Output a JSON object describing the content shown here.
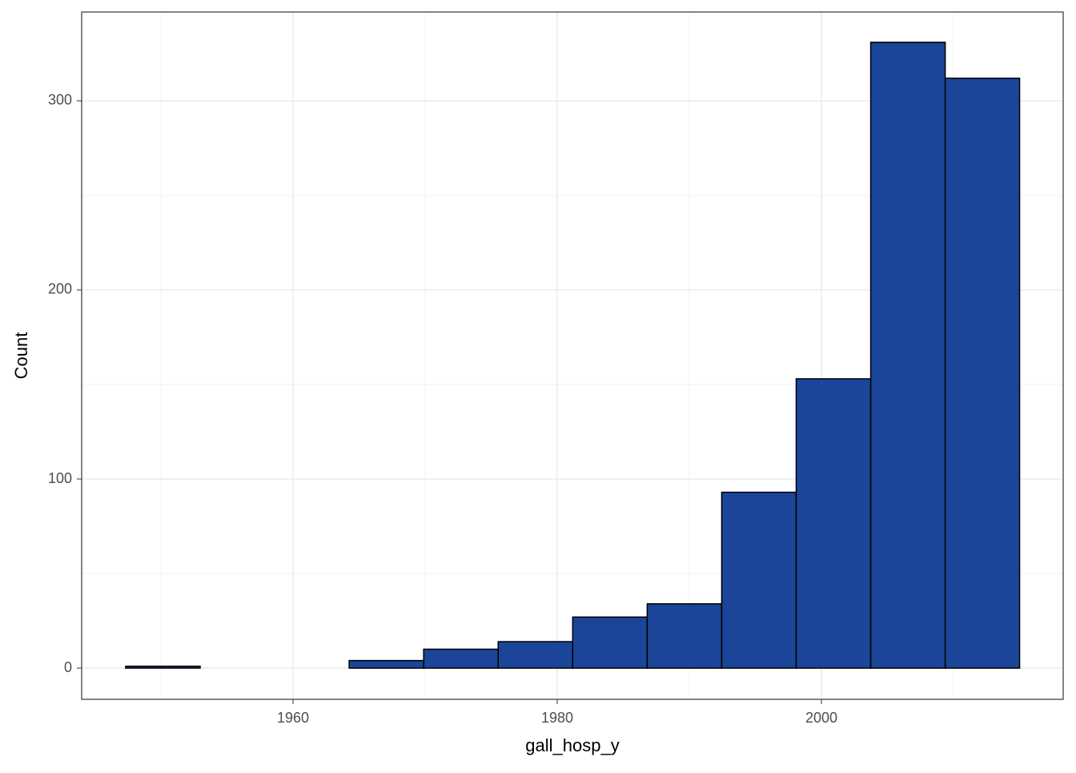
{
  "chart_data": {
    "type": "histogram",
    "x_label": "gall_hosp_y",
    "y_label": "Count",
    "bins": [
      1947.33,
      1952.97,
      1958.61,
      1964.25,
      1969.89,
      1975.53,
      1981.17,
      1986.81,
      1992.45,
      1998.09,
      2003.73,
      2009.37,
      2015.0
    ],
    "counts": [
      1,
      0,
      0,
      4,
      10,
      14,
      27,
      34,
      93,
      153,
      331,
      312
    ],
    "color": "#1a4599",
    "edge_color": "#000000",
    "xlim": [
      1944.0,
      2018.3
    ],
    "xticks": [
      1960,
      1980,
      2000
    ],
    "ylim": [
      -16.5,
      347
    ],
    "yticks": [
      0,
      100,
      200,
      300
    ],
    "grid": true,
    "minor_grid": true
  }
}
